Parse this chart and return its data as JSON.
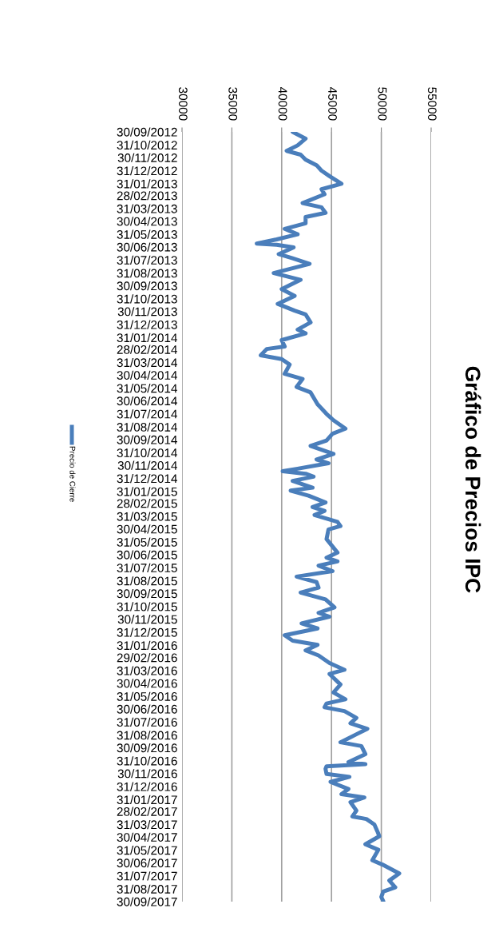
{
  "chart_data": {
    "type": "line",
    "title": "Gráfico de Precios IPC",
    "x": [
      "2012-09-30",
      "2012-10-16",
      "2012-11-01",
      "2012-11-14",
      "2012-11-23",
      "2012-12-05",
      "2012-12-18",
      "2012-12-31",
      "2013-01-13",
      "2013-01-31",
      "2013-02-13",
      "2013-02-25",
      "2013-03-18",
      "2013-03-28",
      "2013-04-10",
      "2013-04-20",
      "2013-05-05",
      "2013-05-18",
      "2013-05-31",
      "2013-06-12",
      "2013-06-22",
      "2013-06-25",
      "2013-07-01",
      "2013-07-17",
      "2013-07-27",
      "2013-08-09",
      "2013-08-31",
      "2013-09-16",
      "2013-10-08",
      "2013-10-24",
      "2013-11-12",
      "2013-11-28",
      "2013-12-07",
      "2013-12-26",
      "2014-01-12",
      "2014-01-21",
      "2014-02-06",
      "2014-02-21",
      "2014-02-27",
      "2014-03-14",
      "2014-03-23",
      "2014-04-05",
      "2014-04-27",
      "2014-05-09",
      "2014-05-28",
      "2014-06-10",
      "2014-07-08",
      "2014-07-31",
      "2014-08-15",
      "2014-09-04",
      "2014-09-16",
      "2014-10-02",
      "2014-10-15",
      "2014-11-03",
      "2014-11-16",
      "2014-11-25",
      "2014-12-08",
      "2014-12-14",
      "2014-12-20",
      "2014-12-27",
      "2015-01-06",
      "2015-01-22",
      "2015-01-29",
      "2015-02-10",
      "2015-02-26",
      "2015-03-09",
      "2015-03-18",
      "2015-03-28",
      "2015-04-13",
      "2015-04-23",
      "2015-05-01",
      "2015-05-24",
      "2015-06-25",
      "2015-07-07",
      "2015-07-16",
      "2015-07-26",
      "2015-08-08",
      "2015-08-21",
      "2015-09-03",
      "2015-09-16",
      "2015-09-28",
      "2015-10-14",
      "2015-11-02",
      "2015-11-15",
      "2015-11-24",
      "2015-12-10",
      "2015-12-22",
      "2016-01-07",
      "2016-01-20",
      "2016-01-30",
      "2016-02-12",
      "2016-02-24",
      "2016-03-13",
      "2016-03-29",
      "2016-04-08",
      "2016-05-03",
      "2016-05-22",
      "2016-06-07",
      "2016-06-17",
      "2016-06-26",
      "2016-07-05",
      "2016-07-21",
      "2016-08-03",
      "2016-08-16",
      "2016-08-29",
      "2016-09-17",
      "2016-09-26",
      "2016-10-15",
      "2016-11-03",
      "2016-11-08",
      "2016-11-13",
      "2016-11-19",
      "2016-12-01",
      "2016-12-08",
      "2016-12-20",
      "2017-01-06",
      "2017-01-18",
      "2017-01-26",
      "2017-02-06",
      "2017-02-26",
      "2017-03-12",
      "2017-03-18",
      "2017-03-31",
      "2017-04-16",
      "2017-04-28",
      "2017-05-17",
      "2017-05-30",
      "2017-06-24",
      "2017-07-04",
      "2017-07-25",
      "2017-08-11",
      "2017-08-27",
      "2017-09-06",
      "2017-09-19",
      "2017-09-29"
    ],
    "series": [
      {
        "name": "Precio de Cierre",
        "color": "#4a7ebb",
        "values": [
          41100,
          42400,
          41600,
          40500,
          41900,
          42400,
          43500,
          44000,
          44800,
          46000,
          44000,
          44300,
          42100,
          44000,
          44400,
          42400,
          42400,
          40300,
          41600,
          39500,
          37500,
          39500,
          41200,
          39700,
          41100,
          42800,
          39200,
          41900,
          40000,
          41300,
          39600,
          41300,
          42400,
          42900,
          41600,
          42400,
          40000,
          40300,
          38500,
          37900,
          40000,
          40800,
          40300,
          42100,
          41500,
          42900,
          43600,
          44500,
          45200,
          46400,
          45100,
          44500,
          42900,
          45200,
          43500,
          44700,
          41600,
          40100,
          42400,
          43200,
          41100,
          43100,
          40900,
          42700,
          44400,
          43100,
          44300,
          43300,
          45600,
          45900,
          44700,
          44500,
          45600,
          44500,
          45600,
          43700,
          45100,
          41500,
          43500,
          43700,
          41900,
          44400,
          45300,
          43700,
          44800,
          42000,
          43600,
          40300,
          41100,
          43600,
          42400,
          43700,
          44800,
          46300,
          44800,
          45900,
          45200,
          46400,
          44500,
          44300,
          46300,
          47500,
          46900,
          48600,
          47500,
          45900,
          48000,
          48400,
          46700,
          48400,
          44500,
          44400,
          44500,
          46800,
          44900,
          46700,
          46000,
          48300,
          46900,
          47500,
          47100,
          48500,
          49300,
          49600,
          49800,
          48400,
          49700,
          49100,
          50100,
          51800,
          50800,
          51400,
          50200,
          50000,
          50200
        ]
      }
    ],
    "orientation": "horizontal",
    "ylim": [
      "2017-09-30",
      "2012-09-30"
    ],
    "yticks": [
      {
        "value": "2012-09-30",
        "label": "30/09/2012"
      },
      {
        "value": "2012-10-31",
        "label": "31/10/2012"
      },
      {
        "value": "2012-11-30",
        "label": "30/11/2012"
      },
      {
        "value": "2012-12-31",
        "label": "31/12/2012"
      },
      {
        "value": "2013-01-31",
        "label": "31/01/2013"
      },
      {
        "value": "2013-02-28",
        "label": "28/02/2013"
      },
      {
        "value": "2013-03-31",
        "label": "31/03/2013"
      },
      {
        "value": "2013-04-30",
        "label": "30/04/2013"
      },
      {
        "value": "2013-05-31",
        "label": "31/05/2013"
      },
      {
        "value": "2013-06-30",
        "label": "30/06/2013"
      },
      {
        "value": "2013-07-31",
        "label": "31/07/2013"
      },
      {
        "value": "2013-08-31",
        "label": "31/08/2013"
      },
      {
        "value": "2013-09-30",
        "label": "30/09/2013"
      },
      {
        "value": "2013-10-31",
        "label": "31/10/2013"
      },
      {
        "value": "2013-11-30",
        "label": "30/11/2013"
      },
      {
        "value": "2013-12-31",
        "label": "31/12/2013"
      },
      {
        "value": "2014-01-31",
        "label": "31/01/2014"
      },
      {
        "value": "2014-02-28",
        "label": "28/02/2014"
      },
      {
        "value": "2014-03-31",
        "label": "31/03/2014"
      },
      {
        "value": "2014-04-30",
        "label": "30/04/2014"
      },
      {
        "value": "2014-05-31",
        "label": "31/05/2014"
      },
      {
        "value": "2014-06-30",
        "label": "30/06/2014"
      },
      {
        "value": "2014-07-31",
        "label": "31/07/2014"
      },
      {
        "value": "2014-08-31",
        "label": "31/08/2014"
      },
      {
        "value": "2014-09-30",
        "label": "30/09/2014"
      },
      {
        "value": "2014-10-31",
        "label": "31/10/2014"
      },
      {
        "value": "2014-11-30",
        "label": "30/11/2014"
      },
      {
        "value": "2014-12-31",
        "label": "31/12/2014"
      },
      {
        "value": "2015-01-31",
        "label": "31/01/2015"
      },
      {
        "value": "2015-02-28",
        "label": "28/02/2015"
      },
      {
        "value": "2015-03-31",
        "label": "31/03/2015"
      },
      {
        "value": "2015-04-30",
        "label": "30/04/2015"
      },
      {
        "value": "2015-05-31",
        "label": "31/05/2015"
      },
      {
        "value": "2015-06-30",
        "label": "30/06/2015"
      },
      {
        "value": "2015-07-31",
        "label": "31/07/2015"
      },
      {
        "value": "2015-08-31",
        "label": "31/08/2015"
      },
      {
        "value": "2015-09-30",
        "label": "30/09/2015"
      },
      {
        "value": "2015-10-31",
        "label": "31/10/2015"
      },
      {
        "value": "2015-11-30",
        "label": "30/11/2015"
      },
      {
        "value": "2015-12-31",
        "label": "31/12/2015"
      },
      {
        "value": "2016-01-31",
        "label": "31/01/2016"
      },
      {
        "value": "2016-02-29",
        "label": "29/02/2016"
      },
      {
        "value": "2016-03-31",
        "label": "31/03/2016"
      },
      {
        "value": "2016-04-30",
        "label": "30/04/2016"
      },
      {
        "value": "2016-05-31",
        "label": "31/05/2016"
      },
      {
        "value": "2016-06-30",
        "label": "30/06/2016"
      },
      {
        "value": "2016-07-31",
        "label": "31/07/2016"
      },
      {
        "value": "2016-08-31",
        "label": "31/08/2016"
      },
      {
        "value": "2016-09-30",
        "label": "30/09/2016"
      },
      {
        "value": "2016-10-31",
        "label": "31/10/2016"
      },
      {
        "value": "2016-11-30",
        "label": "30/11/2016"
      },
      {
        "value": "2016-12-31",
        "label": "31/12/2016"
      },
      {
        "value": "2017-01-31",
        "label": "31/01/2017"
      },
      {
        "value": "2017-02-28",
        "label": "28/02/2017"
      },
      {
        "value": "2017-03-31",
        "label": "31/03/2017"
      },
      {
        "value": "2017-04-30",
        "label": "30/04/2017"
      },
      {
        "value": "2017-05-31",
        "label": "31/05/2017"
      },
      {
        "value": "2017-06-30",
        "label": "30/06/2017"
      },
      {
        "value": "2017-07-31",
        "label": "31/07/2017"
      },
      {
        "value": "2017-08-31",
        "label": "31/08/2017"
      },
      {
        "value": "2017-09-30",
        "label": "30/09/2017"
      }
    ],
    "xlim": [
      30000,
      55000
    ],
    "xticks": [
      30000,
      35000,
      40000,
      45000,
      50000,
      55000
    ],
    "grid": "x",
    "legend": "left",
    "marker": "none",
    "line_style": "solid"
  }
}
